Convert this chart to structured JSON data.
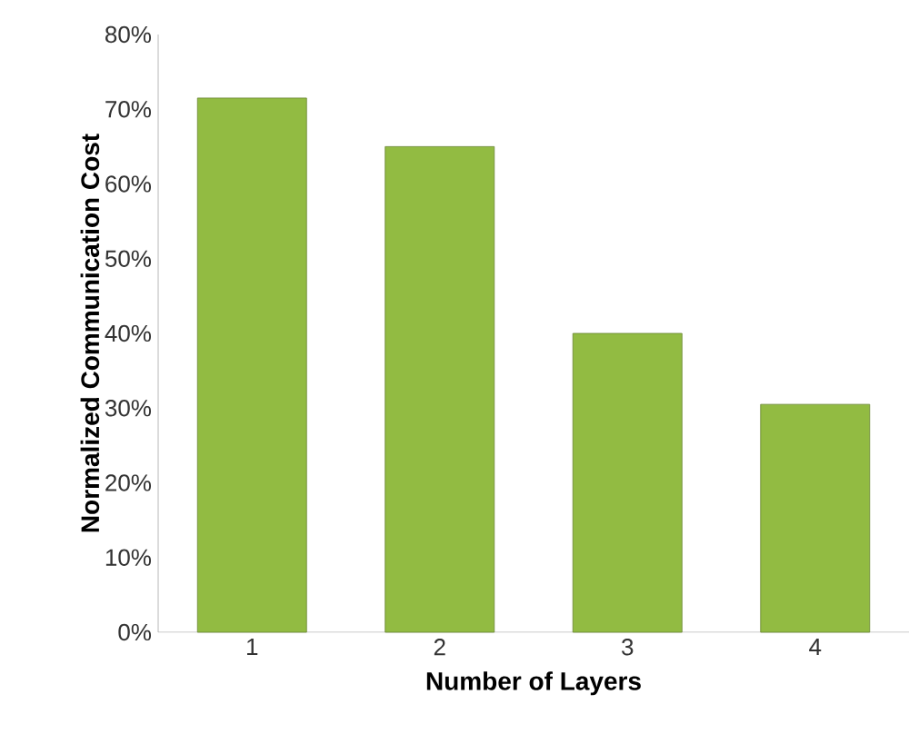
{
  "chart_data": {
    "type": "bar",
    "xlabel": "Number of Layers",
    "ylabel": "Normalized Communication Cost",
    "categories": [
      "1",
      "2",
      "3",
      "4"
    ],
    "values": [
      71.5,
      65,
      40,
      30.5
    ],
    "color": "#92bb42",
    "ylim": [
      0,
      80
    ],
    "yticks": [
      {
        "value": 0,
        "label": "0%"
      },
      {
        "value": 10,
        "label": "10%"
      },
      {
        "value": 20,
        "label": "20%"
      },
      {
        "value": 30,
        "label": "30%"
      },
      {
        "value": 40,
        "label": "40%"
      },
      {
        "value": 50,
        "label": "50%"
      },
      {
        "value": 60,
        "label": "60%"
      },
      {
        "value": 70,
        "label": "70%"
      },
      {
        "value": 80,
        "label": "80%"
      }
    ],
    "grid": false
  }
}
